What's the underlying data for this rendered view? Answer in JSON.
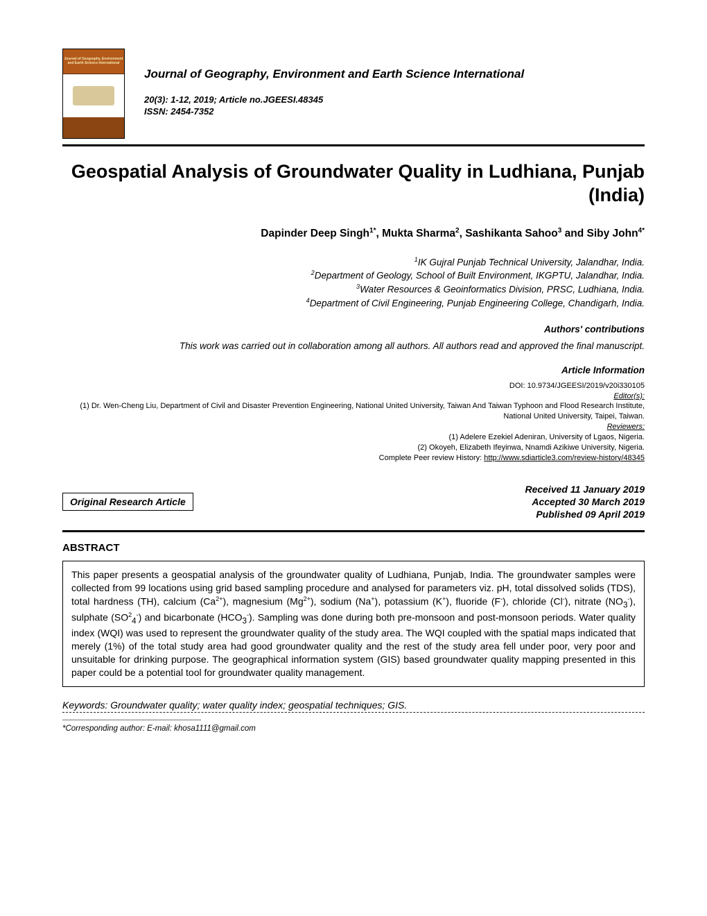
{
  "journal": {
    "name": "Journal of Geography, Environment and Earth Science International",
    "issue_line": "20(3): 1-12, 2019; Article no.JGEESI.48345",
    "issn_line": "ISSN: 2454-7352",
    "cover_title": "Journal of Geography, Environment and Earth Science International"
  },
  "title": "Geospatial Analysis of Groundwater Quality in Ludhiana, Punjab (India)",
  "authors_html": "Dapinder Deep Singh<sup>1*</sup>, Mukta Sharma<sup>2</sup>, Sashikanta Sahoo<sup>3</sup> and Siby John<sup>4*</sup>",
  "affiliations": {
    "a1": "IK Gujral Punjab Technical University, Jalandhar, India.",
    "a2": "Department of Geology, School of Built Environment, IKGPTU, Jalandhar, India.",
    "a3": "Water Resources & Geoinformatics Division, PRSC, Ludhiana, India.",
    "a4": "Department of Civil Engineering, Punjab Engineering College, Chandigarh, India."
  },
  "contributions_label": "Authors' contributions",
  "contributions_text": "This work was carried out in collaboration among all authors. All authors read and approved the final manuscript.",
  "article_info_label": "Article Information",
  "article_info": {
    "doi": "DOI: 10.9734/JGEESI/2019/v20i330105",
    "editors_label": "Editor(s):",
    "editor1": "(1) Dr. Wen-Cheng Liu, Department of Civil and Disaster Prevention Engineering, National United University, Taiwan And Taiwan Typhoon and Flood Research Institute, National United University, Taipei, Taiwan.",
    "reviewers_label": "Reviewers:",
    "rev1": "(1) Adelere Ezekiel Adeniran, University of Lgaos, Nigeria.",
    "rev2": "(2) Okoyeh, Elizabeth Ifeyinwa, Nnamdi Azikiwe University, Nigeria.",
    "history_prefix": "Complete Peer review History: ",
    "history_url": "http://www.sdiarticle3.com/review-history/48345"
  },
  "article_type": "Original Research Article",
  "dates": {
    "received": "Received 11 January 2019",
    "accepted": "Accepted 30 March 2019",
    "published": "Published 09 April 2019"
  },
  "abstract_label": "ABSTRACT",
  "abstract_html": "This paper presents a geospatial analysis of the groundwater quality of Ludhiana, Punjab, India. The groundwater samples were collected from 99 locations using grid based sampling procedure and analysed for parameters viz. pH, total dissolved solids (TDS), total hardness (TH), calcium (Ca<sup>2+</sup>), magnesium (Mg<sup>2+</sup>), sodium (Na<sup>+</sup>), potassium (K<sup>+</sup>), fluoride (F<sup>-</sup>), chloride (Cl<sup>-</sup>), nitrate (NO<sub>3</sub><sup>-</sup>), sulphate (SO<sup>2</sup><sub>4</sub><sup>-</sup>) and bicarbonate (HCO<sub>3</sub><sup>-</sup>). Sampling was done during both pre-monsoon and post-monsoon periods. Water quality index (WQI) was used to represent the groundwater quality of the study area. The WQI coupled with the spatial maps indicated that merely (1%) of the total study area had good groundwater quality and the rest of the study area fell under poor, very poor and unsuitable for drinking purpose. The geographical information system (GIS) based groundwater quality mapping presented in this paper could be a potential tool for groundwater quality management.",
  "keywords": "Keywords: Groundwater quality; water quality index; geospatial techniques; GIS.",
  "corresponding": "*Corresponding author: E-mail: khosa1111@gmail.com"
}
